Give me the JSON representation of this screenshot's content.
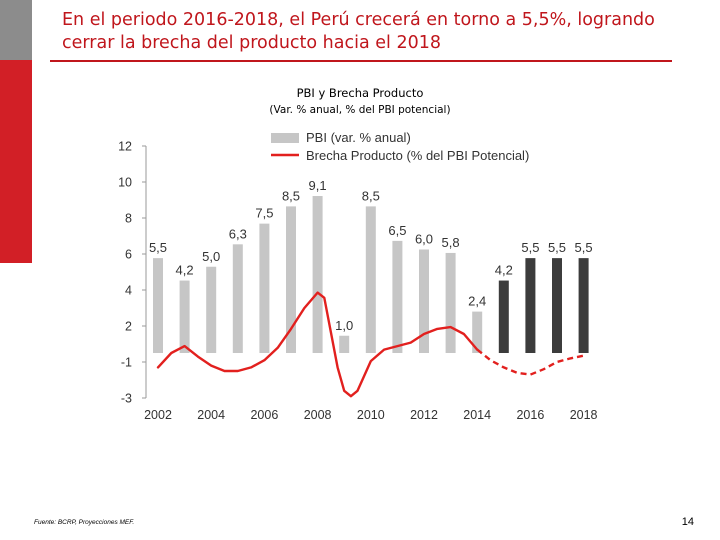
{
  "slide": {
    "title": "En el periodo 2016-2018, el Perú crecerá en torno a 5,5%, logrando cerrar la brecha del producto hacia el 2018",
    "footnote": "Fuente: BCRP, Proyecciones MEF.",
    "page_number": "14"
  },
  "colors": {
    "accent_red": "#d21f26",
    "accent_gray": "#8c8c8c",
    "bar_historic": "#c6c6c6",
    "bar_projected": "#3c3c3c",
    "line": "#e2201e"
  },
  "chart_data": {
    "type": "bar",
    "title": "PBI y Brecha Producto",
    "subtitle": "(Var. % anual, % del PBI potencial)",
    "ylim": [
      -3,
      12
    ],
    "y_ticks": [
      "12",
      "10",
      "8",
      "6",
      "4",
      "2",
      "-1",
      "-3"
    ],
    "x_ticks": [
      "2002",
      "2004",
      "2006",
      "2008",
      "2010",
      "2012",
      "2014",
      "2016",
      "2018"
    ],
    "legend_position": "top",
    "grid": false,
    "series": [
      {
        "name": "PBI (var. % anual)",
        "type": "bar",
        "x": [
          2002,
          2003,
          2004,
          2005,
          2006,
          2007,
          2008,
          2009,
          2010,
          2011,
          2012,
          2013,
          2014,
          2015,
          2016,
          2017,
          2018
        ],
        "values": [
          5.5,
          4.2,
          5.0,
          6.3,
          7.5,
          8.5,
          9.1,
          1.0,
          8.5,
          6.5,
          6.0,
          5.8,
          2.4,
          4.2,
          5.5,
          5.5,
          5.5
        ],
        "labels": [
          "5,5",
          "4,2",
          "5,0",
          "6,3",
          "7,5",
          "8,5",
          "9,1",
          "1,0",
          "8,5",
          "6,5",
          "6,0",
          "5,8",
          "2,4",
          "4,2",
          "5,5",
          "5,5",
          "5,5"
        ],
        "projected_from": 2015
      },
      {
        "name": "Brecha Producto (% del PBI Potencial)",
        "type": "line",
        "x": [
          2002,
          2002.5,
          2003,
          2003.5,
          2004,
          2004.5,
          2005,
          2005.5,
          2006,
          2006.5,
          2007,
          2007.5,
          2008,
          2008.25,
          2008.5,
          2008.75,
          2009,
          2009.25,
          2009.5,
          2010,
          2010.5,
          2011,
          2011.5,
          2012,
          2012.5,
          2013,
          2013.5,
          2014,
          2014.5,
          2015,
          2015.5,
          2016,
          2016.5,
          2017,
          2017.5,
          2018
        ],
        "values": [
          -1.3,
          0.0,
          0.4,
          -0.4,
          -1.2,
          -1.5,
          -1.5,
          -1.3,
          -0.8,
          0.3,
          1.4,
          2.6,
          3.5,
          3.2,
          1.2,
          -1.3,
          -2.6,
          -2.9,
          -2.6,
          -0.9,
          0.2,
          0.4,
          0.6,
          1.1,
          1.4,
          1.5,
          1.1,
          0.2,
          -0.8,
          -1.3,
          -1.6,
          -1.7,
          -1.4,
          -1.0,
          -0.6,
          -0.3
        ],
        "projected_from": 2014
      }
    ]
  }
}
